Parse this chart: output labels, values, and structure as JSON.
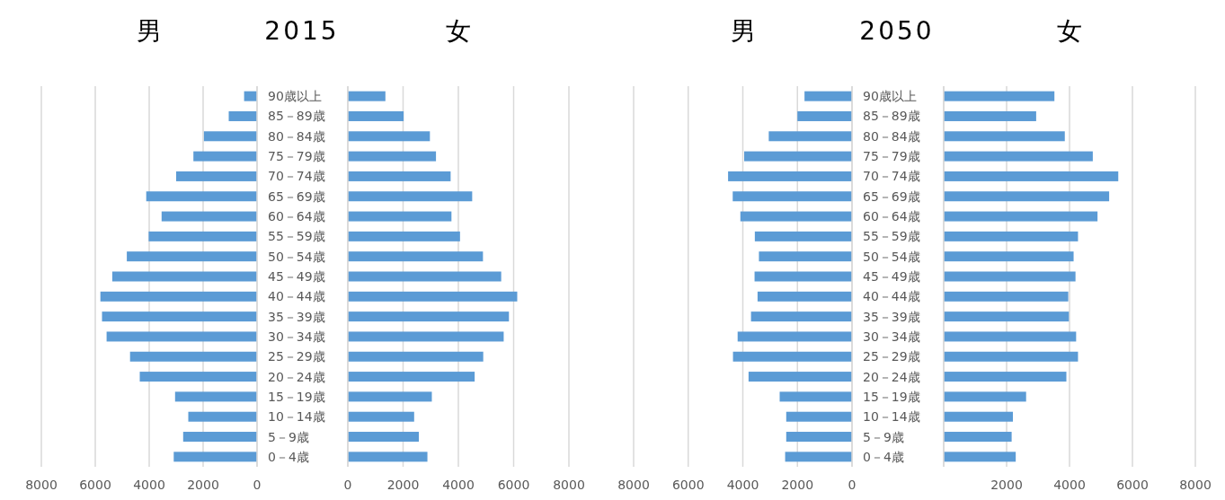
{
  "chart_data": [
    {
      "type": "bar",
      "orientation": "horizontal",
      "title": "男",
      "annotations": [
        "2015"
      ],
      "categories": [
        "90歳以上",
        "85－89歳",
        "80－84歳",
        "75－79歳",
        "70－74歳",
        "65－69歳",
        "60－64歳",
        "55－59歳",
        "50－54歳",
        "45－49歳",
        "40－44歳",
        "35－39歳",
        "30－34歳",
        "25－29歳",
        "20－24歳",
        "15－19歳",
        "10－14歳",
        "5－9歳",
        "0－4歳"
      ],
      "values": [
        480,
        1050,
        1970,
        2360,
        3000,
        4110,
        3540,
        4020,
        4830,
        5370,
        5810,
        5750,
        5580,
        4710,
        4350,
        3040,
        2550,
        2740,
        3090
      ],
      "color": "#5b9bd5",
      "xlim": [
        8000,
        0
      ],
      "xticks": [
        8000,
        6000,
        4000,
        2000,
        0
      ],
      "grid": "x"
    },
    {
      "type": "bar",
      "orientation": "horizontal",
      "title": "女",
      "tick_labels": "x",
      "categories": [
        null,
        null,
        null,
        null,
        null,
        null,
        null,
        null,
        null,
        null,
        null,
        null,
        null,
        null,
        null,
        null,
        null,
        null,
        null
      ],
      "values": [
        1360,
        2020,
        2970,
        3190,
        3720,
        4500,
        3750,
        4060,
        4890,
        5550,
        6130,
        5830,
        5640,
        4900,
        4590,
        3040,
        2400,
        2570,
        2880
      ],
      "color": "#5b9bd5",
      "xlim": [
        0,
        8000
      ],
      "xticks": [
        0,
        2000,
        4000,
        6000,
        8000
      ],
      "grid": "x"
    },
    {
      "type": "bar",
      "orientation": "horizontal",
      "title": "男",
      "annotations": [
        "2050"
      ],
      "categories": [
        "90歳以上",
        "85－89歳",
        "80－84歳",
        "75－79歳",
        "70－74歳",
        "65－69歳",
        "60－64歳",
        "55－59歳",
        "50－54歳",
        "45－49歳",
        "40－44歳",
        "35－39歳",
        "30－34歳",
        "25－29歳",
        "20－24歳",
        "15－19歳",
        "10－14歳",
        "5－9歳",
        "0－4歳"
      ],
      "values": [
        1740,
        2000,
        3050,
        3950,
        4540,
        4370,
        4090,
        3560,
        3410,
        3570,
        3460,
        3700,
        4190,
        4360,
        3790,
        2650,
        2410,
        2410,
        2450
      ],
      "color": "#5b9bd5",
      "xlim": [
        8000,
        0
      ],
      "xticks": [
        8000,
        6000,
        4000,
        2000,
        0
      ],
      "grid": "x"
    },
    {
      "type": "bar",
      "orientation": "horizontal",
      "title": "女",
      "tick_labels": "x",
      "categories": [
        null,
        null,
        null,
        null,
        null,
        null,
        null,
        null,
        null,
        null,
        null,
        null,
        null,
        null,
        null,
        null,
        null,
        null,
        null
      ],
      "values": [
        3520,
        2940,
        3850,
        4740,
        5550,
        5260,
        4890,
        4270,
        4130,
        4190,
        3960,
        3980,
        4210,
        4270,
        3900,
        2620,
        2200,
        2160,
        2290
      ],
      "color": "#5b9bd5",
      "xlim": [
        0,
        8000
      ],
      "xticks": [
        {
          "value": 0,
          "label": null
        },
        2000,
        4000,
        6000,
        8000
      ],
      "grid": "x"
    }
  ]
}
